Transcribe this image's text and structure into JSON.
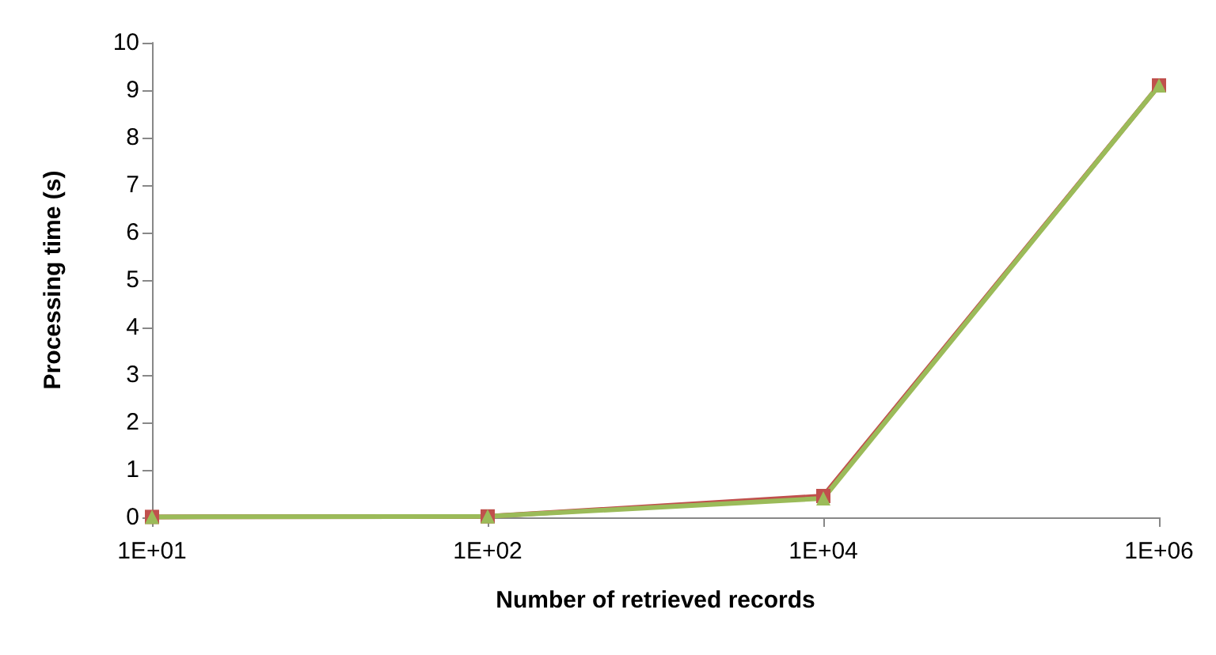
{
  "chart_data": {
    "type": "line",
    "xlabel": "Number of retrieved records",
    "ylabel": "Processing time (s)",
    "categories": [
      "1E+01",
      "1E+02",
      "1E+04",
      "1E+06"
    ],
    "series": [
      {
        "color": "#c0504d",
        "marker": "square",
        "values": [
          0.01,
          0.02,
          0.45,
          9.1
        ]
      },
      {
        "color": "#9bbb59",
        "marker": "triangle",
        "values": [
          0.01,
          0.02,
          0.4,
          9.1
        ]
      }
    ],
    "ylim": [
      0,
      10
    ],
    "yticks": [
      0,
      1,
      2,
      3,
      4,
      5,
      6,
      7,
      8,
      9,
      10
    ],
    "grid": false
  }
}
